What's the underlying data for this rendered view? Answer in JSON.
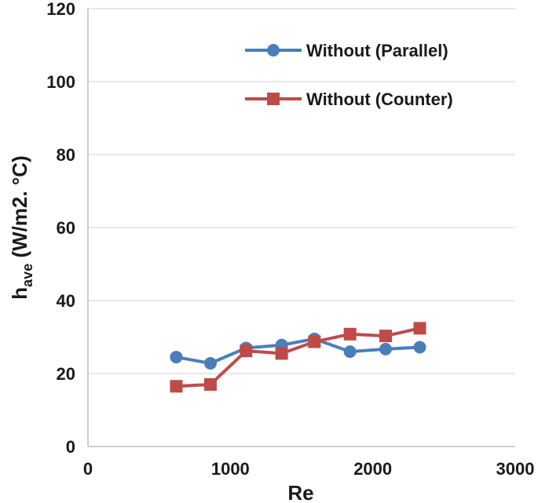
{
  "chart_data": {
    "type": "line",
    "title": "",
    "xlabel": "Re",
    "ylabel": {
      "main": "h",
      "sub": "ave",
      "rest": " (W/m2. °C)"
    },
    "xlim": [
      0,
      3000
    ],
    "ylim": [
      0,
      120
    ],
    "xticks": [
      "0",
      "1000",
      "2000",
      "3000"
    ],
    "yticks": [
      "0",
      "20",
      "40",
      "60",
      "80",
      "100",
      "120"
    ],
    "grid": "horizontal",
    "legend_position": "top-right",
    "series": [
      {
        "name": "Without (Parallel)",
        "color": "#4A7EBB",
        "marker": "circle",
        "x": [
          620,
          860,
          1110,
          1360,
          1590,
          1840,
          2090,
          2330
        ],
        "y": [
          24.5,
          22.8,
          27.0,
          27.8,
          29.5,
          26.0,
          26.7,
          27.2
        ]
      },
      {
        "name": "Without (Counter)",
        "color": "#BE4B48",
        "marker": "square",
        "x": [
          620,
          860,
          1110,
          1360,
          1590,
          1840,
          2090,
          2330
        ],
        "y": [
          16.5,
          17.0,
          26.2,
          25.5,
          28.7,
          30.8,
          30.3,
          32.4
        ]
      }
    ]
  }
}
